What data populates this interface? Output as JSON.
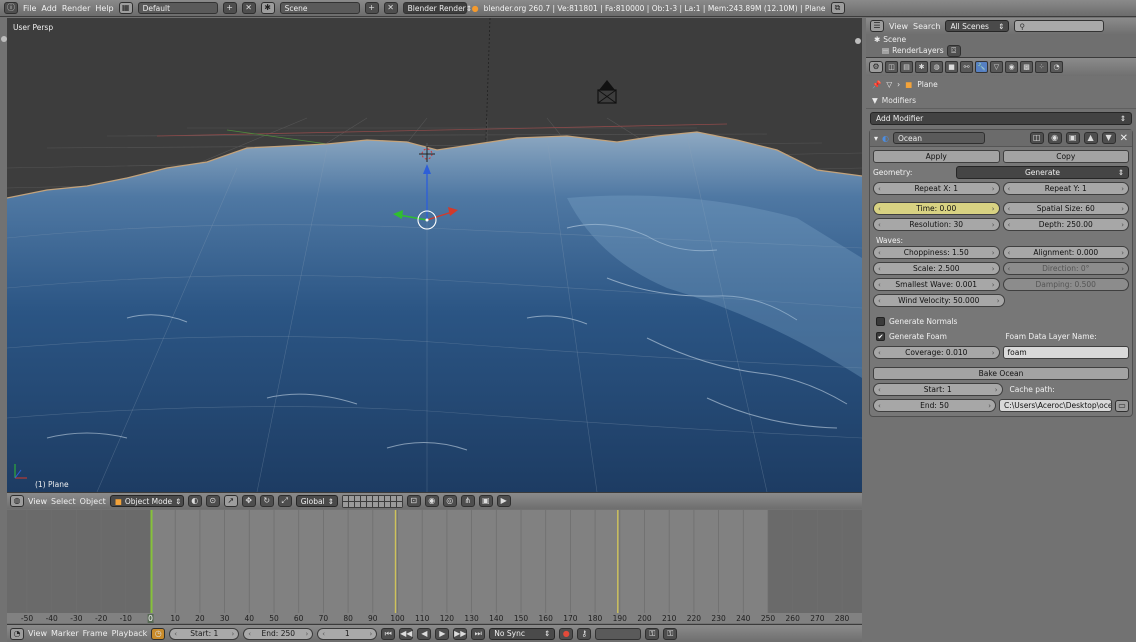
{
  "colors": {
    "accent_blue": "#5680c2",
    "time_field_yellow": "#d8d282",
    "ocean_deep": "#1f3f66",
    "ocean_light": "#5f86ad",
    "frame_marker_green": "#86c23a"
  },
  "info_header": {
    "menu": [
      "File",
      "Add",
      "Render",
      "Help"
    ],
    "screen_layout": "Default",
    "scene": "Scene",
    "render_engine": "Blender Render",
    "stats": "blender.org 260.7 | Ve:811801 | Fa:810000 | Ob:1-3 | La:1 | Mem:243.89M (12.10M) | Plane"
  },
  "viewport": {
    "view_label": "User Persp",
    "object_label": "(1) Plane",
    "header": {
      "menu": [
        "View",
        "Select",
        "Object"
      ],
      "mode": "Object Mode",
      "orientation": "Global"
    }
  },
  "timeline": {
    "tick_labels": [
      "-50",
      "-40",
      "-30",
      "-20",
      "-10",
      "0",
      "10",
      "20",
      "30",
      "40",
      "50",
      "60",
      "70",
      "80",
      "90",
      "100",
      "110",
      "120",
      "130",
      "140",
      "150",
      "160",
      "170",
      "180",
      "190",
      "200",
      "210",
      "220",
      "230",
      "240",
      "250",
      "260",
      "270",
      "280"
    ],
    "current_frame_label": "0",
    "header": {
      "menu": [
        "View",
        "Marker",
        "Frame",
        "Playback"
      ],
      "start": "Start: 1",
      "end": "End: 250",
      "current": "1",
      "sync": "No Sync"
    }
  },
  "outliner": {
    "menu": [
      "View",
      "Search"
    ],
    "filter": "All Scenes",
    "items": [
      "Scene",
      "RenderLayers"
    ]
  },
  "properties": {
    "breadcrumb": "Plane",
    "panel_title": "Modifiers",
    "add_modifier": "Add Modifier",
    "modifier": {
      "name": "Ocean",
      "apply": "Apply",
      "copy": "Copy",
      "geometry_label": "Geometry:",
      "geometry_value": "Generate",
      "repeat_x": "Repeat X: 1",
      "repeat_y": "Repeat Y: 1",
      "time": "Time: 0.00",
      "spatial_size": "Spatial Size: 60",
      "resolution": "Resolution: 30",
      "depth": "Depth: 250.00",
      "waves_label": "Waves:",
      "choppiness": "Choppiness: 1.50",
      "alignment": "Alignment: 0.000",
      "scale": "Scale: 2.500",
      "direction": "Direction: 0°",
      "smallest_wave": "Smallest Wave: 0.001",
      "damping": "Damping: 0.500",
      "wind_velocity": "Wind Velocity: 50.000",
      "generate_normals": "Generate Normals",
      "generate_foam": "Generate Foam",
      "foam_layer_label": "Foam Data Layer Name:",
      "coverage": "Coverage: 0.010",
      "foam_layer_value": "foam",
      "bake": "Bake Ocean",
      "bake_start": "Start: 1",
      "cache_label": "Cache path:",
      "bake_end": "End: 50",
      "cache_path": "C:\\Users\\Aceroc\\Desktop\\ocean\\"
    }
  }
}
